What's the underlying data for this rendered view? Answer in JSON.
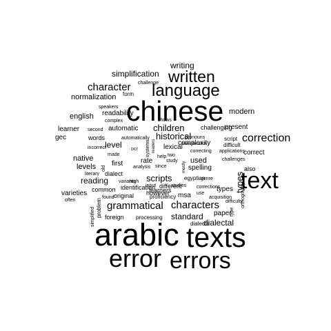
{
  "word_cloud": {
    "text_color": "#000000",
    "background": "#ffffff",
    "words": [
      "chinese",
      "arabic",
      "texts",
      "text",
      "errors",
      "error",
      "language",
      "written",
      "correction",
      "character",
      "characters",
      "grammatical",
      "writing",
      "simplification",
      "normalization",
      "english",
      "learner",
      "gec",
      "native",
      "levels",
      "reading",
      "varieties",
      "common",
      "foreign",
      "modern",
      "present",
      "correct",
      "also",
      "types",
      "dialectal",
      "standard",
      "dialects",
      "msa",
      "paper",
      "used",
      "spelling",
      "complexity",
      "children",
      "historical",
      "lexical",
      "scripts",
      "learners",
      "however",
      "different",
      "first",
      "level",
      "words",
      "automatic",
      "readability",
      "dialect",
      "identification",
      "original",
      "proficiency",
      "processing",
      "challenging",
      "script",
      "difficult",
      "applications",
      "challenges",
      "acquisition",
      "corrections",
      "studies",
      "egyptian",
      "genre",
      "correcting",
      "pronouns",
      "transliteration",
      "study",
      "since",
      "analysis",
      "help",
      "two",
      "rate",
      "ocr",
      "made",
      "automatically",
      "shows",
      "challenge",
      "form",
      "speakers",
      "complex",
      "second",
      "incorrect",
      "literary",
      "variants",
      "high",
      "input",
      "found",
      "often",
      "simplified",
      "problem",
      "systems",
      "orthography",
      "difficulty",
      "type",
      "old",
      "readers",
      "mostly",
      "vocabulary",
      "use"
    ]
  }
}
